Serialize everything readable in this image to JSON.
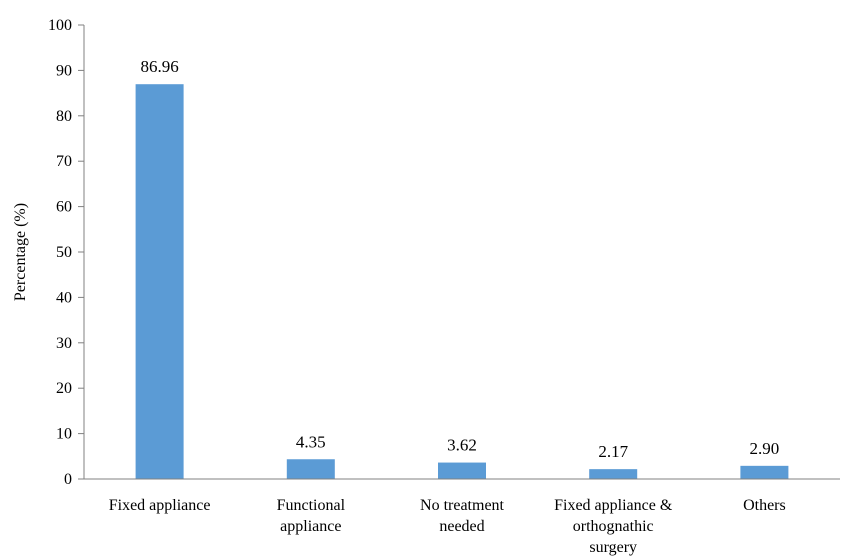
{
  "chart_data": {
    "type": "bar",
    "title": "",
    "xlabel": "",
    "ylabel": "Percentage (%)",
    "ylim": [
      0,
      100
    ],
    "yticks": [
      "0",
      "10",
      "20",
      "30",
      "40",
      "50",
      "60",
      "70",
      "80",
      "90",
      "100"
    ],
    "categories": [
      [
        "Fixed appliance"
      ],
      [
        "Functional",
        "appliance"
      ],
      [
        "No treatment",
        "needed"
      ],
      [
        "Fixed appliance &",
        "orthognathic",
        "surgery"
      ],
      [
        "Others"
      ]
    ],
    "values": [
      86.96,
      4.35,
      3.62,
      2.17,
      2.9
    ],
    "value_labels": [
      "86.96",
      "4.35",
      "3.62",
      "2.17",
      "2.90"
    ],
    "bar_color": "#5B9BD5",
    "grid": false,
    "legend": "none"
  }
}
